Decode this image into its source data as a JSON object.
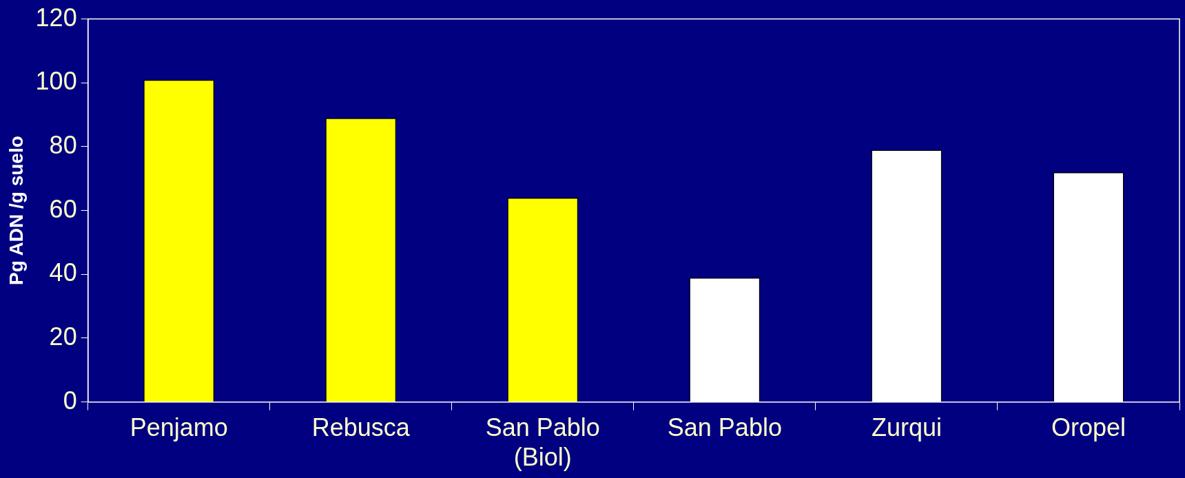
{
  "chart_data": {
    "type": "bar",
    "ylabel": "Pg ADN /g suelo",
    "categories": [
      "Penjamo",
      "Rebusca",
      "San Pablo\n(Biol)",
      "San Pablo",
      "Zurqui",
      "Oropel"
    ],
    "values": [
      101,
      89,
      64,
      39,
      79,
      72
    ],
    "colors": [
      "#ffff00",
      "#ffff00",
      "#ffff00",
      "#ffffff",
      "#ffffff",
      "#ffffff"
    ],
    "ylim": [
      0,
      120
    ],
    "yticks": [
      0,
      20,
      40,
      60,
      80,
      100,
      120
    ],
    "grid": false,
    "legend": false
  }
}
